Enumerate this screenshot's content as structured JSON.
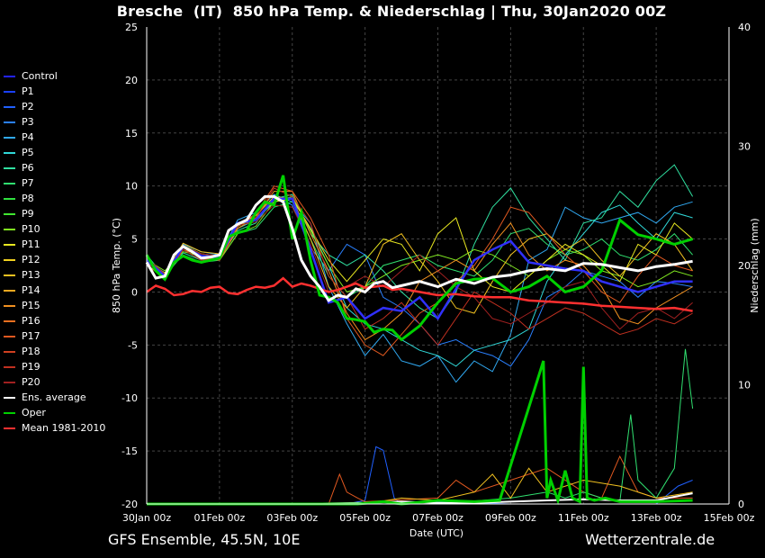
{
  "title": "Bresche  (IT)  850 hPa Temp. & Niederschlag | Thu, 30Jan2020 00Z",
  "footer_left": "GFS Ensemble, 45.5N, 10E",
  "footer_right": "Wetterzentrale.de",
  "chart_data": {
    "type": "line",
    "xlabel": "Date (UTC)",
    "ylabel": "850 hPa Temp. (°C)",
    "y2label": "Niederschlag (mm)",
    "ylim": [
      -20,
      25
    ],
    "y2lim": [
      0,
      40
    ],
    "xlim": [
      0,
      15
    ],
    "yticks": [
      25,
      20,
      15,
      10,
      5,
      0,
      -5,
      -10,
      -15,
      -20
    ],
    "y2ticks": [
      40,
      30,
      20,
      10,
      0
    ],
    "xtick_labels": [
      "30Jan 00z",
      "01Feb 00z",
      "03Feb 00z",
      "05Feb 00z",
      "07Feb 00z",
      "09Feb 00z",
      "11Feb 00z",
      "13Feb 00z",
      "15Feb 00z"
    ],
    "xtick_days": [
      0,
      2,
      4,
      6,
      8,
      10,
      12,
      14,
      16
    ],
    "grid": true,
    "legend_position": "left",
    "legend": [
      {
        "name": "Control",
        "color": "#2222ff"
      },
      {
        "name": "P1",
        "color": "#1a40ff"
      },
      {
        "name": "P2",
        "color": "#2060ff"
      },
      {
        "name": "P3",
        "color": "#2a80ff"
      },
      {
        "name": "P4",
        "color": "#30a8f0"
      },
      {
        "name": "P5",
        "color": "#30d8d8"
      },
      {
        "name": "P6",
        "color": "#30e0a0"
      },
      {
        "name": "P7",
        "color": "#30e070"
      },
      {
        "name": "P8",
        "color": "#30e040"
      },
      {
        "name": "P9",
        "color": "#40e830"
      },
      {
        "name": "P10",
        "color": "#80e820"
      },
      {
        "name": "P11",
        "color": "#e8e820"
      },
      {
        "name": "P12",
        "color": "#f0d020"
      },
      {
        "name": "P13",
        "color": "#f0c020"
      },
      {
        "name": "P14",
        "color": "#f0a820"
      },
      {
        "name": "P15",
        "color": "#f09020"
      },
      {
        "name": "P16",
        "color": "#f07020"
      },
      {
        "name": "P17",
        "color": "#e05820"
      },
      {
        "name": "P18",
        "color": "#d04020"
      },
      {
        "name": "P19",
        "color": "#c03020"
      },
      {
        "name": "P20",
        "color": "#a02020"
      },
      {
        "name": "Ens. average",
        "color": "#ffffff"
      },
      {
        "name": "Oper",
        "color": "#00d000"
      },
      {
        "name": "Mean 1981-2010",
        "color": "#ff3030"
      }
    ],
    "ensemble_average": {
      "name": "Ens. average",
      "color": "#ffffff",
      "x": [
        0,
        0.25,
        0.5,
        0.75,
        1,
        1.25,
        1.5,
        1.75,
        2,
        2.25,
        2.5,
        2.75,
        3,
        3.25,
        3.5,
        3.75,
        4,
        4.25,
        4.5,
        4.75,
        5,
        5.25,
        5.5,
        5.75,
        6,
        6.25,
        6.5,
        6.75,
        7,
        7.5,
        8,
        8.5,
        9,
        9.5,
        10,
        10.5,
        11,
        11.5,
        12,
        12.5,
        13,
        13.5,
        14,
        14.5,
        15
      ],
      "y": [
        2.8,
        1.3,
        1.5,
        3.5,
        4.3,
        3.8,
        3.2,
        3.3,
        3.5,
        5.8,
        6.4,
        6.8,
        8.2,
        9.0,
        9.0,
        8.5,
        6.0,
        3.0,
        1.5,
        0.5,
        -0.8,
        -0.3,
        -0.5,
        0.3,
        0.0,
        0.8,
        1.0,
        0.4,
        0.6,
        1.0,
        0.5,
        1.2,
        0.8,
        1.4,
        1.6,
        2.0,
        2.2,
        2.0,
        2.7,
        2.6,
        2.3,
        2.0,
        2.4,
        2.6,
        2.9
      ]
    },
    "oper": {
      "name": "Oper",
      "color": "#00d000",
      "x": [
        0,
        0.25,
        0.5,
        0.75,
        1,
        1.25,
        1.5,
        1.75,
        2,
        2.25,
        2.5,
        2.75,
        3,
        3.25,
        3.5,
        3.75,
        4,
        4.25,
        4.5,
        4.75,
        5,
        5.25,
        5.5,
        5.75,
        6,
        6.25,
        6.5,
        6.75,
        7,
        7.5,
        8,
        8.5,
        9,
        9.5,
        10,
        10.5,
        11,
        11.5,
        12,
        12.5,
        13,
        13.5,
        14,
        14.5,
        15
      ],
      "y": [
        3.5,
        2.0,
        1.2,
        2.8,
        3.4,
        3.0,
        2.8,
        3.0,
        3.2,
        5.2,
        5.6,
        5.8,
        7.5,
        8.5,
        8.2,
        11.0,
        5.0,
        7.5,
        3.0,
        -0.3,
        -0.5,
        -1.0,
        -2.5,
        -2.6,
        -2.8,
        -3.8,
        -3.5,
        -3.6,
        -4.5,
        -3.2,
        -1.0,
        0.8,
        1.2,
        1.3,
        0.0,
        0.5,
        1.5,
        0.0,
        0.5,
        2.0,
        6.8,
        5.4,
        5.0,
        4.5,
        5.0
      ]
    },
    "mean_1981_2010": {
      "name": "Mean 1981-2010",
      "color": "#ff3030",
      "x": [
        0,
        0.25,
        0.5,
        0.75,
        1,
        1.25,
        1.5,
        1.75,
        2,
        2.25,
        2.5,
        2.75,
        3,
        3.25,
        3.5,
        3.75,
        4,
        4.25,
        4.5,
        4.75,
        5,
        5.25,
        5.5,
        5.75,
        6,
        6.25,
        6.5,
        6.75,
        7,
        7.5,
        8,
        8.5,
        9,
        9.5,
        10,
        10.5,
        11,
        11.5,
        12,
        12.5,
        13,
        13.5,
        14,
        14.5,
        15
      ],
      "y": [
        0.0,
        0.6,
        0.3,
        -0.3,
        -0.2,
        0.1,
        0.0,
        0.4,
        0.5,
        -0.1,
        -0.2,
        0.2,
        0.5,
        0.4,
        0.6,
        1.3,
        0.5,
        0.8,
        0.6,
        0.3,
        0.0,
        0.2,
        0.5,
        0.8,
        0.4,
        0.5,
        0.6,
        0.2,
        0.3,
        0.0,
        -0.3,
        -0.2,
        -0.4,
        -0.5,
        -0.5,
        -0.8,
        -0.9,
        -1.0,
        -1.1,
        -1.3,
        -1.4,
        -1.5,
        -1.6,
        -1.5,
        -1.8
      ]
    },
    "control": {
      "name": "Control",
      "color": "#3030ff",
      "x": [
        0,
        0.5,
        1,
        1.5,
        2,
        2.5,
        3,
        3.5,
        4,
        4.5,
        5,
        5.5,
        6,
        6.5,
        7,
        7.5,
        8,
        8.5,
        9,
        9.5,
        10,
        10.5,
        11,
        11.5,
        12,
        12.5,
        13,
        13.5,
        14,
        14.5,
        15
      ],
      "y": [
        3.0,
        1.5,
        4.3,
        3.4,
        3.3,
        6.5,
        6.8,
        8.8,
        8.8,
        4.0,
        -1.0,
        -0.5,
        -2.5,
        -1.5,
        -1.8,
        -0.5,
        -2.5,
        0.3,
        3.0,
        4.0,
        4.8,
        2.8,
        2.5,
        2.2,
        2.0,
        1.0,
        0.5,
        0.0,
        0.5,
        1.0,
        1.0
      ]
    },
    "members": [
      {
        "color": "#2a80ff",
        "y": [
          2.8,
          1.5,
          4.2,
          3.2,
          3.2,
          6.2,
          7.2,
          9.0,
          8.2,
          4.2,
          2.0,
          4.5,
          3.5,
          -0.5,
          -1.5,
          -3.0,
          -5.0,
          -4.5,
          -5.5,
          -6.0,
          -7.0,
          -4.5,
          -0.5,
          0.5,
          2.0,
          1.5,
          1.0,
          -0.5,
          1.0,
          0.8,
          0.5
        ]
      },
      {
        "color": "#30a8f0",
        "y": [
          3.2,
          1.2,
          4.5,
          3.8,
          3.5,
          6.8,
          7.5,
          9.2,
          8.5,
          6.5,
          0.5,
          -3.0,
          -6.0,
          -4.0,
          -6.5,
          -7.0,
          -6.0,
          -8.5,
          -6.5,
          -7.5,
          -4.0,
          3.0,
          4.0,
          8.0,
          7.0,
          6.5,
          7.0,
          7.5,
          6.5,
          8.0,
          8.5
        ]
      },
      {
        "color": "#30d8d8",
        "y": [
          3.0,
          1.8,
          4.0,
          3.0,
          3.5,
          6.0,
          6.8,
          8.5,
          8.8,
          6.0,
          2.5,
          -1.5,
          -3.0,
          -3.5,
          -4.5,
          -5.5,
          -6.0,
          -7.0,
          -5.5,
          -5.0,
          -4.5,
          -3.5,
          1.0,
          3.5,
          5.5,
          7.5,
          8.2,
          6.5,
          5.0,
          7.5,
          7.0
        ]
      },
      {
        "color": "#30e0a0",
        "y": [
          3.5,
          1.4,
          3.7,
          3.0,
          3.2,
          5.8,
          6.5,
          8.8,
          9.2,
          5.5,
          3.5,
          2.5,
          3.5,
          2.0,
          0.0,
          -1.5,
          -2.5,
          0.0,
          4.5,
          8.0,
          9.8,
          7.0,
          5.0,
          3.0,
          6.5,
          7.0,
          9.5,
          8.0,
          10.5,
          12.0,
          9.0
        ]
      },
      {
        "color": "#30e070",
        "y": [
          2.5,
          1.6,
          3.5,
          2.8,
          3.0,
          5.5,
          6.0,
          8.0,
          8.5,
          5.0,
          1.5,
          -0.5,
          0.5,
          2.5,
          3.0,
          3.5,
          2.5,
          2.0,
          1.5,
          3.0,
          5.5,
          6.0,
          4.5,
          3.5,
          4.0,
          5.0,
          3.5,
          3.0,
          4.0,
          5.5,
          3.5
        ]
      },
      {
        "color": "#80e820",
        "y": [
          3.0,
          2.0,
          3.8,
          3.4,
          3.0,
          5.5,
          6.2,
          8.5,
          9.0,
          5.8,
          2.5,
          0.0,
          0.5,
          1.5,
          2.5,
          3.0,
          3.5,
          3.0,
          4.0,
          3.5,
          2.5,
          1.5,
          3.0,
          4.0,
          3.5,
          2.0,
          1.5,
          0.5,
          1.0,
          2.0,
          1.5
        ]
      },
      {
        "color": "#e8e820",
        "y": [
          2.8,
          1.8,
          4.4,
          3.6,
          3.4,
          6.2,
          7.0,
          8.5,
          8.8,
          6.0,
          3.0,
          1.0,
          3.0,
          5.0,
          4.5,
          2.0,
          5.5,
          7.0,
          2.0,
          0.5,
          0.0,
          1.5,
          3.0,
          4.5,
          3.5,
          2.5,
          1.0,
          4.5,
          3.5,
          6.5,
          5.0
        ]
      },
      {
        "color": "#f0c020",
        "y": [
          3.2,
          1.6,
          4.6,
          3.8,
          3.6,
          6.4,
          7.2,
          9.0,
          8.8,
          5.0,
          0.5,
          -1.5,
          0.5,
          4.5,
          5.5,
          3.0,
          1.0,
          -1.5,
          -2.0,
          1.0,
          3.5,
          5.0,
          5.5,
          4.0,
          5.0,
          3.0,
          1.5,
          3.5,
          5.5,
          4.5,
          2.0
        ]
      },
      {
        "color": "#f09020",
        "y": [
          2.6,
          1.2,
          4.0,
          3.4,
          3.0,
          6.0,
          7.0,
          9.5,
          9.5,
          5.5,
          2.0,
          -2.0,
          -4.5,
          -3.5,
          -2.0,
          1.0,
          2.0,
          3.0,
          2.0,
          4.5,
          6.5,
          3.5,
          2.0,
          3.0,
          2.5,
          0.5,
          -2.5,
          -3.0,
          -1.5,
          -0.5,
          0.5
        ]
      },
      {
        "color": "#e05820",
        "y": [
          3.0,
          1.3,
          4.2,
          3.2,
          3.0,
          6.2,
          7.4,
          10.0,
          9.5,
          7.0,
          3.5,
          -2.5,
          -5.0,
          -6.0,
          -4.0,
          -2.0,
          -1.0,
          1.0,
          2.5,
          5.0,
          8.0,
          7.5,
          5.5,
          3.5,
          2.0,
          0.0,
          -1.0,
          1.5,
          3.5,
          2.5,
          2.0
        ]
      },
      {
        "color": "#c03020",
        "y": [
          2.8,
          1.4,
          4.0,
          3.0,
          3.2,
          6.5,
          7.0,
          9.8,
          9.0,
          6.5,
          1.5,
          -0.5,
          -3.5,
          -2.5,
          -1.0,
          -3.0,
          -5.0,
          -2.5,
          0.0,
          -1.0,
          -2.0,
          -3.5,
          -2.5,
          -1.5,
          -2.0,
          -3.0,
          -4.0,
          -3.5,
          -2.5,
          -3.0,
          -2.0
        ]
      },
      {
        "color": "#a02020",
        "y": [
          3.2,
          1.7,
          4.3,
          3.6,
          3.4,
          6.3,
          6.6,
          8.2,
          8.0,
          4.5,
          0.0,
          0.5,
          1.5,
          0.5,
          2.0,
          3.5,
          2.0,
          0.5,
          -0.5,
          -2.5,
          -3.0,
          -2.0,
          -1.0,
          0.5,
          1.0,
          -1.5,
          -3.5,
          -2.0,
          -1.5,
          -2.5,
          -1.0
        ]
      }
    ],
    "precip_oper": {
      "x": [
        0,
        2,
        4,
        5.8,
        6.5,
        7,
        8,
        9,
        9.7,
        10.9,
        11.0,
        11.1,
        11.3,
        11.5,
        11.7,
        11.9,
        12.0,
        12.1,
        12.3,
        12.6,
        13,
        14,
        15
      ],
      "y": [
        0,
        0,
        0,
        0,
        0.2,
        0,
        0.3,
        0.2,
        0.3,
        12,
        0.5,
        2,
        0.3,
        2.8,
        0.5,
        0.2,
        11.5,
        0.5,
        0.3,
        0.5,
        0.2,
        0.2,
        0.3
      ]
    },
    "precip_average": {
      "x": [
        0,
        2,
        4,
        6,
        7,
        8,
        9,
        10,
        11,
        12,
        13,
        14,
        14.5,
        15
      ],
      "y": [
        0,
        0,
        0,
        0.1,
        0.2,
        0.1,
        0.1,
        0.2,
        0.3,
        0.4,
        0.3,
        0.3,
        0.6,
        0.9
      ]
    },
    "precip_members": [
      {
        "color": "#2060ff",
        "x": [
          0,
          5.5,
          6.0,
          6.3,
          6.5,
          6.8,
          7,
          8,
          10,
          12,
          14,
          14.6,
          15
        ],
        "y": [
          0,
          0,
          0.3,
          4.8,
          4.5,
          0.5,
          0,
          0.2,
          0,
          0,
          0,
          1.5,
          2
        ]
      },
      {
        "color": "#e05820",
        "x": [
          0,
          5,
          5.3,
          5.5,
          5.8,
          6,
          8,
          8.5,
          9,
          10,
          11,
          12,
          12.5,
          13,
          13.5,
          14,
          15
        ],
        "y": [
          0,
          0,
          2.5,
          1,
          0.5,
          0.2,
          0.5,
          2,
          1,
          2,
          3,
          1,
          0.5,
          4,
          1,
          0.5,
          0.5
        ]
      },
      {
        "color": "#30e070",
        "x": [
          0,
          8,
          10,
          11,
          11.5,
          12,
          12.5,
          13,
          13.3,
          13.5,
          14,
          14.5,
          14.8,
          15
        ],
        "y": [
          0,
          0,
          0.5,
          1,
          0.5,
          1,
          0.5,
          0.2,
          7.5,
          2,
          0.5,
          3,
          13,
          8
        ]
      },
      {
        "color": "#f0c020",
        "x": [
          0,
          6,
          7,
          8,
          9,
          9.5,
          10,
          10.5,
          11,
          12,
          13,
          14,
          15
        ],
        "y": [
          0,
          0,
          0.5,
          0.3,
          1,
          2.5,
          0.5,
          3,
          1,
          2,
          1.5,
          0.5,
          1
        ]
      }
    ]
  }
}
